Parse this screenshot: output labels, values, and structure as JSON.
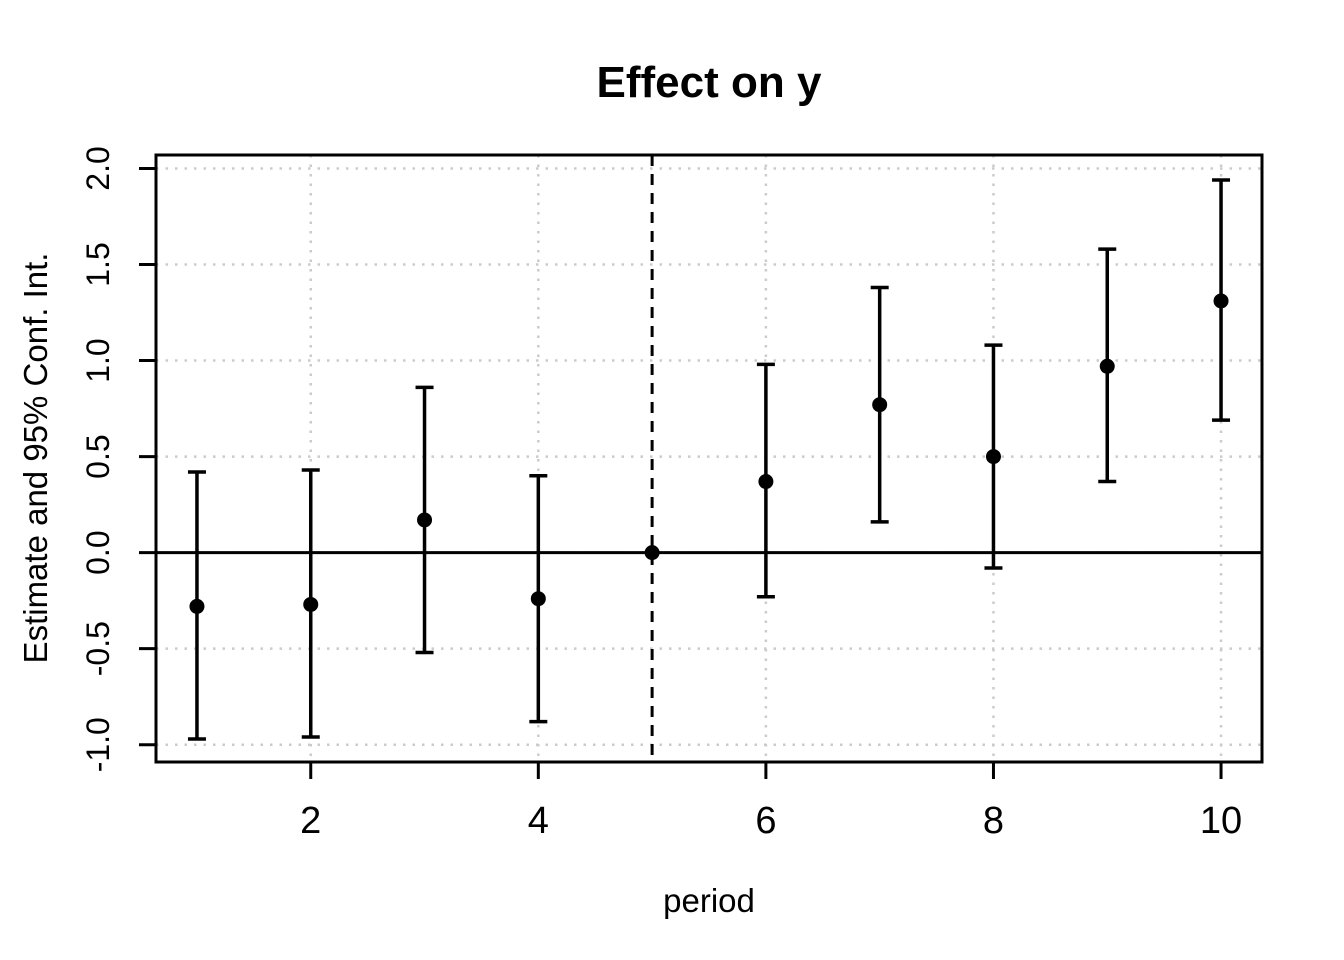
{
  "chart_data": {
    "type": "scatter",
    "subtype": "point-estimates-with-error-bars",
    "title": "Effect on y",
    "xlabel": "period",
    "ylabel": "Estimate and 95% Conf. Int.",
    "xlim": [
      0.64,
      10.36
    ],
    "ylim": [
      -1.09,
      2.07
    ],
    "x_ticks": {
      "values": [
        2,
        4,
        6,
        8,
        10
      ],
      "labels": [
        "2",
        "4",
        "6",
        "8",
        "10"
      ]
    },
    "y_ticks": {
      "values": [
        -1.0,
        -0.5,
        0.0,
        0.5,
        1.0,
        1.5,
        2.0
      ],
      "labels": [
        "-1.0",
        "-0.5",
        "0.0",
        "0.5",
        "1.0",
        "1.5",
        "2.0"
      ]
    },
    "grid": {
      "show": true,
      "style": "dotted",
      "x_at": [
        2,
        4,
        6,
        8,
        10
      ],
      "y_at": [
        -1.0,
        -0.5,
        0.0,
        0.5,
        1.0,
        1.5,
        2.0
      ]
    },
    "reference_lines": {
      "horizontal": {
        "y": 0,
        "style": "solid"
      },
      "vertical": {
        "x": 5,
        "style": "dashed"
      }
    },
    "legend": {
      "show": false
    },
    "series": [
      {
        "name": "estimate",
        "marker": "filled-circle",
        "color": "#000000",
        "points": [
          {
            "period": 1,
            "estimate": -0.28,
            "ci_low": -0.97,
            "ci_high": 0.42
          },
          {
            "period": 2,
            "estimate": -0.27,
            "ci_low": -0.96,
            "ci_high": 0.43
          },
          {
            "period": 3,
            "estimate": 0.17,
            "ci_low": -0.52,
            "ci_high": 0.86
          },
          {
            "period": 4,
            "estimate": -0.24,
            "ci_low": -0.88,
            "ci_high": 0.4
          },
          {
            "period": 5,
            "estimate": 0.0,
            "ci_low": null,
            "ci_high": null
          },
          {
            "period": 6,
            "estimate": 0.37,
            "ci_low": -0.23,
            "ci_high": 0.98
          },
          {
            "period": 7,
            "estimate": 0.77,
            "ci_low": 0.16,
            "ci_high": 1.38
          },
          {
            "period": 8,
            "estimate": 0.5,
            "ci_low": -0.08,
            "ci_high": 1.08
          },
          {
            "period": 9,
            "estimate": 0.97,
            "ci_low": 0.37,
            "ci_high": 1.58
          },
          {
            "period": 10,
            "estimate": 1.31,
            "ci_low": 0.69,
            "ci_high": 1.94
          }
        ]
      }
    ],
    "colors": {
      "foreground": "#000000",
      "background": "#FFFFFF",
      "grid": "#CBCBCB"
    }
  }
}
